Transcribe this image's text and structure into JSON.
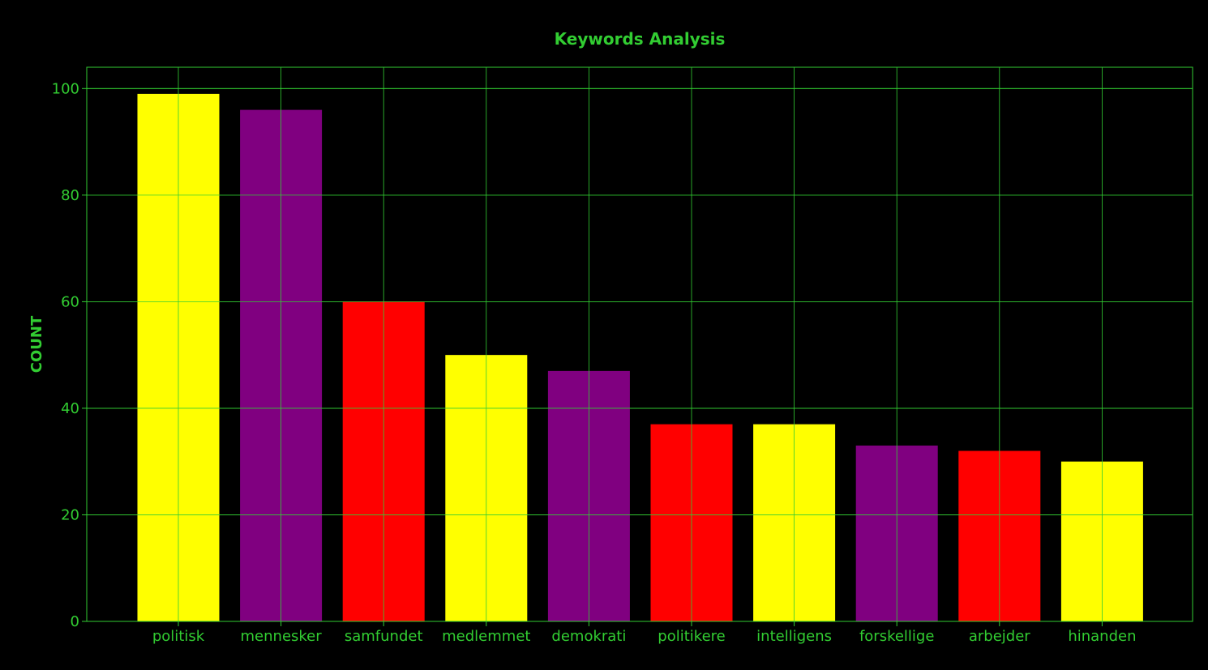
{
  "theme": {
    "background": "#000000",
    "text_color": "#32CD32",
    "grid_color": "#32CD32"
  },
  "chart_data": {
    "type": "bar",
    "title": "Keywords Analysis",
    "xlabel": "",
    "ylabel": "COUNT",
    "categories": [
      "politisk",
      "mennesker",
      "samfundet",
      "medlemmet",
      "demokrati",
      "politikere",
      "intelligens",
      "forskellige",
      "arbejder",
      "hinanden"
    ],
    "values": [
      99,
      96,
      60,
      50,
      47,
      37,
      37,
      33,
      32,
      30
    ],
    "colors": [
      "#FFFF00",
      "#800080",
      "#FF0000",
      "#FFFF00",
      "#800080",
      "#FF0000",
      "#FFFF00",
      "#800080",
      "#FF0000",
      "#FFFF00"
    ],
    "yticks": [
      0,
      20,
      40,
      60,
      80,
      100
    ],
    "ylim": [
      0,
      104
    ],
    "grid": true,
    "legend": "none"
  }
}
